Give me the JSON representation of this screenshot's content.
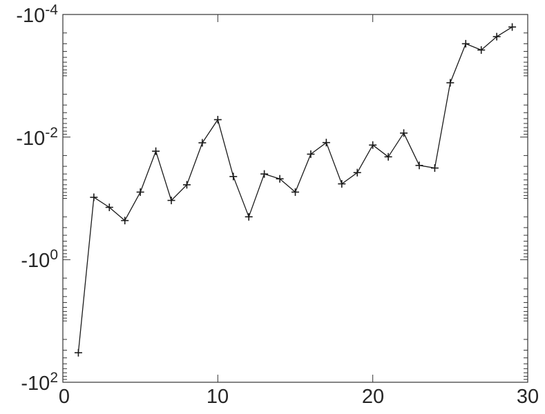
{
  "style": {
    "background": "#ffffff",
    "axis_color": "#333333",
    "line_color": "#1a1a1a",
    "marker_color": "#1a1a1a",
    "text_color": "#262626"
  },
  "chart_data": {
    "type": "line",
    "title": "",
    "xlabel": "",
    "ylabel": "",
    "grid": false,
    "legend": null,
    "marker": "+",
    "y_scale": "negative-log",
    "xlim": [
      0,
      30
    ],
    "ylim_exponents": [
      -4,
      2
    ],
    "x_ticks": [
      0,
      10,
      20,
      30
    ],
    "x_tick_labels": [
      "0",
      "10",
      "20",
      "30"
    ],
    "y_tick_exponents": [
      -4,
      -2,
      0,
      2
    ],
    "y_tick_labels": [
      {
        "base": "-10",
        "exp": "-4"
      },
      {
        "base": "-10",
        "exp": "-2"
      },
      {
        "base": "-10",
        "exp": "0"
      },
      {
        "base": "-10",
        "exp": "2"
      }
    ],
    "x": [
      1,
      2,
      3,
      4,
      5,
      6,
      7,
      8,
      9,
      10,
      11,
      12,
      13,
      14,
      15,
      16,
      17,
      18,
      19,
      20,
      21,
      22,
      23,
      24,
      25,
      26,
      27,
      28,
      29
    ],
    "y": [
      -33,
      -0.096,
      -0.14,
      -0.23,
      -0.079,
      -0.017,
      -0.108,
      -0.06,
      -0.0124,
      -0.0052,
      -0.044,
      -0.2,
      -0.04,
      -0.048,
      -0.079,
      -0.019,
      -0.0123,
      -0.058,
      -0.038,
      -0.0135,
      -0.021,
      -0.0086,
      -0.029,
      -0.032,
      -0.0013,
      -0.0003,
      -0.00038,
      -0.00023,
      -0.00016
    ]
  }
}
